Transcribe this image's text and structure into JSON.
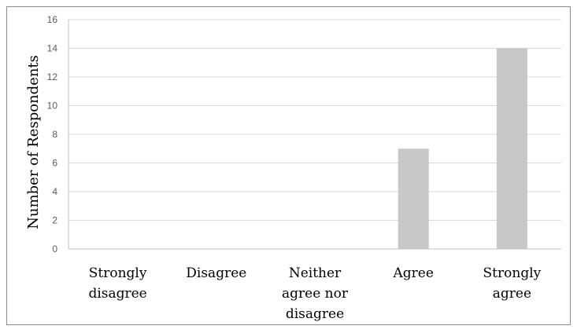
{
  "chart_data": {
    "type": "bar",
    "categories": [
      [
        "Strongly",
        "disagree"
      ],
      [
        "Disagree"
      ],
      [
        "Neither",
        "agree nor",
        "disagree"
      ],
      [
        "Agree"
      ],
      [
        "Strongly",
        "agree"
      ]
    ],
    "values": [
      0,
      0,
      0,
      7,
      14
    ],
    "title": "",
    "xlabel": "",
    "ylabel": "Number of Respondents",
    "ylim": [
      0,
      16
    ],
    "yticks": [
      0,
      2,
      4,
      6,
      8,
      10,
      12,
      14,
      16
    ],
    "grid": true,
    "legend": "none",
    "colors": {
      "bar": "#c8c8c8",
      "grid": "#d9d9d9",
      "axis": "#bfbfbf",
      "border": "#8c8c8c",
      "tick_text": "#595959"
    }
  }
}
